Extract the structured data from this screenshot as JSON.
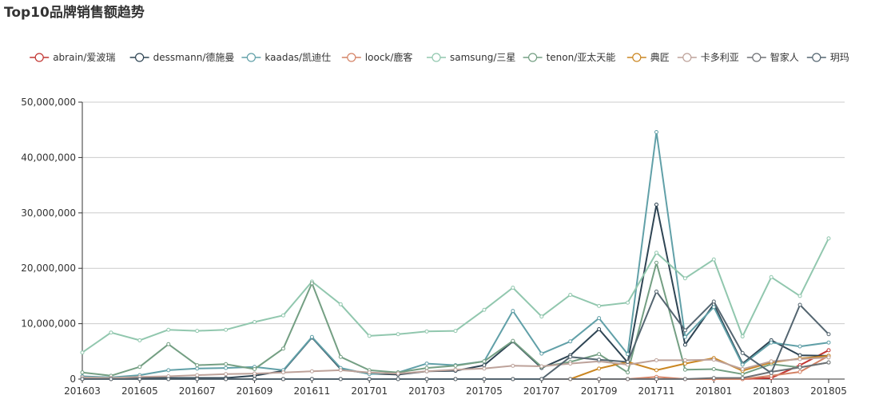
{
  "chart_data": {
    "type": "line",
    "title": "Top10品牌销售额趋势",
    "xlabel": "",
    "ylabel": "",
    "ylim": [
      0,
      50000000
    ],
    "yticks": [
      0,
      10000000,
      20000000,
      30000000,
      40000000,
      50000000
    ],
    "ytick_labels": [
      "0",
      "10,000,000",
      "20,000,000",
      "30,000,000",
      "40,000,000",
      "50,000,000"
    ],
    "xtick_labels": [
      "201603",
      "201605",
      "201607",
      "201609",
      "201611",
      "201701",
      "201703",
      "201705",
      "201707",
      "201709",
      "201711",
      "201801",
      "201803",
      "201805"
    ],
    "grid": true,
    "legend_position": "top",
    "categories": [
      "201603",
      "201604",
      "201605",
      "201606",
      "201607",
      "201608",
      "201609",
      "201610",
      "201611",
      "201612",
      "201701",
      "201702",
      "201703",
      "201704",
      "201705",
      "201706",
      "201707",
      "201708",
      "201709",
      "201710",
      "201711",
      "201712",
      "201801",
      "201802",
      "201803",
      "201804",
      "201805"
    ],
    "series": [
      {
        "name": "abrain/爱波瑞",
        "color": "#c23531",
        "values": [
          0,
          0,
          0,
          0,
          0,
          0,
          0,
          0,
          0,
          0,
          0,
          0,
          0,
          0,
          0,
          0,
          0,
          0,
          0,
          0,
          0,
          0,
          0,
          0,
          200000,
          2500000,
          5200000
        ]
      },
      {
        "name": "dessmann/德施曼",
        "color": "#2f4554",
        "values": [
          200000,
          100000,
          200000,
          200000,
          200000,
          200000,
          600000,
          1500000,
          7500000,
          1800000,
          1000000,
          800000,
          1400000,
          1500000,
          2500000,
          6800000,
          2000000,
          4300000,
          9000000,
          3000000,
          31500000,
          6200000,
          13500000,
          2800000,
          7000000,
          4300000,
          4200000
        ]
      },
      {
        "name": "kaadas/凯迪仕",
        "color": "#61a0a8",
        "values": [
          500000,
          300000,
          700000,
          1600000,
          1900000,
          2000000,
          2200000,
          1600000,
          7600000,
          2000000,
          900000,
          1200000,
          2800000,
          2500000,
          3200000,
          12300000,
          4600000,
          6800000,
          11000000,
          4500000,
          44600000,
          7600000,
          13000000,
          2600000,
          6600000,
          5900000,
          6600000
        ]
      },
      {
        "name": "loock/鹿客",
        "color": "#d48265",
        "values": [
          0,
          0,
          0,
          0,
          0,
          0,
          0,
          0,
          0,
          0,
          0,
          0,
          0,
          0,
          0,
          0,
          0,
          0,
          0,
          0,
          400000,
          0,
          0,
          0,
          600000,
          1300000,
          4200000
        ]
      },
      {
        "name": "samsung/三星",
        "color": "#91c7ae",
        "values": [
          4800000,
          8400000,
          7000000,
          8900000,
          8700000,
          8900000,
          10300000,
          11500000,
          17600000,
          13500000,
          7800000,
          8100000,
          8600000,
          8700000,
          12500000,
          16500000,
          11300000,
          15200000,
          13200000,
          13800000,
          22800000,
          18200000,
          21600000,
          7700000,
          18400000,
          15000000,
          25400000
        ]
      },
      {
        "name": "tenon/亚太天能",
        "color": "#749f83",
        "values": [
          1200000,
          600000,
          2200000,
          6300000,
          2500000,
          2700000,
          1800000,
          5500000,
          17300000,
          4000000,
          1600000,
          1200000,
          2000000,
          2400000,
          3200000,
          6900000,
          2200000,
          3100000,
          4500000,
          1200000,
          21000000,
          1700000,
          1800000,
          900000,
          2700000,
          2100000,
          3000000
        ]
      },
      {
        "name": "典匠",
        "color": "#ca8622",
        "values": [
          0,
          0,
          0,
          0,
          0,
          0,
          0,
          0,
          0,
          0,
          0,
          0,
          0,
          0,
          0,
          0,
          0,
          0,
          1900000,
          3100000,
          1600000,
          2800000,
          3800000,
          1500000,
          3000000,
          3700000,
          4200000
        ]
      },
      {
        "name": "卡多利亚",
        "color": "#bda29a",
        "values": [
          300000,
          200000,
          400000,
          500000,
          700000,
          900000,
          1000000,
          1200000,
          1400000,
          1600000,
          1200000,
          1000000,
          1400000,
          1700000,
          1900000,
          2400000,
          2300000,
          2800000,
          3200000,
          2600000,
          3400000,
          3400000,
          3500000,
          1800000,
          3200000,
          3600000,
          3900000
        ]
      },
      {
        "name": "智家人",
        "color": "#6e7074",
        "values": [
          0,
          0,
          0,
          0,
          0,
          0,
          0,
          0,
          0,
          0,
          0,
          0,
          0,
          0,
          0,
          0,
          0,
          0,
          0,
          0,
          0,
          0,
          200000,
          200000,
          1300000,
          2100000,
          3000000
        ]
      },
      {
        "name": "玥玛",
        "color": "#546570",
        "values": [
          0,
          0,
          0,
          0,
          0,
          0,
          0,
          0,
          0,
          0,
          0,
          0,
          0,
          0,
          0,
          0,
          0,
          4000000,
          3500000,
          3100000,
          15800000,
          8800000,
          14000000,
          4700000,
          1100000,
          13400000,
          8100000
        ]
      }
    ]
  }
}
